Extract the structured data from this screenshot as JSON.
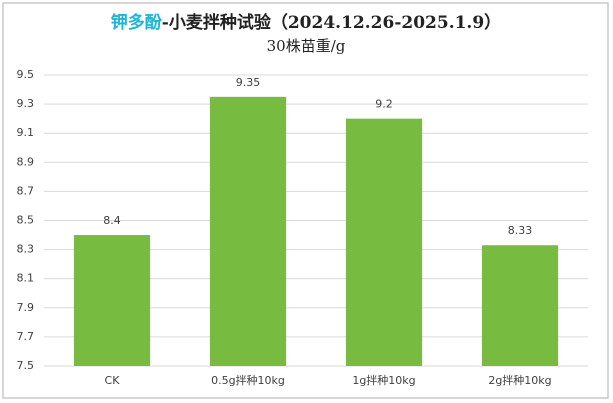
{
  "chart_data": {
    "type": "bar",
    "title_highlight": "钾多酚",
    "title_highlight_color": "#1fb5d4",
    "title": "-小麦拌种试验（2024.12.26-2025.1.9）",
    "subtitle": "30株苗重/g",
    "categories": [
      "CK",
      "0.5g拌种10kg",
      "1g拌种10kg",
      "2g拌种10kg"
    ],
    "values": [
      8.4,
      9.35,
      9.2,
      8.33
    ],
    "color": "#77bb41",
    "ylim": [
      7.5,
      9.5
    ],
    "yticks": [
      7.5,
      7.7,
      7.9,
      8.1,
      8.3,
      8.5,
      8.7,
      8.9,
      9.1,
      9.3,
      9.5
    ],
    "grid": true
  }
}
